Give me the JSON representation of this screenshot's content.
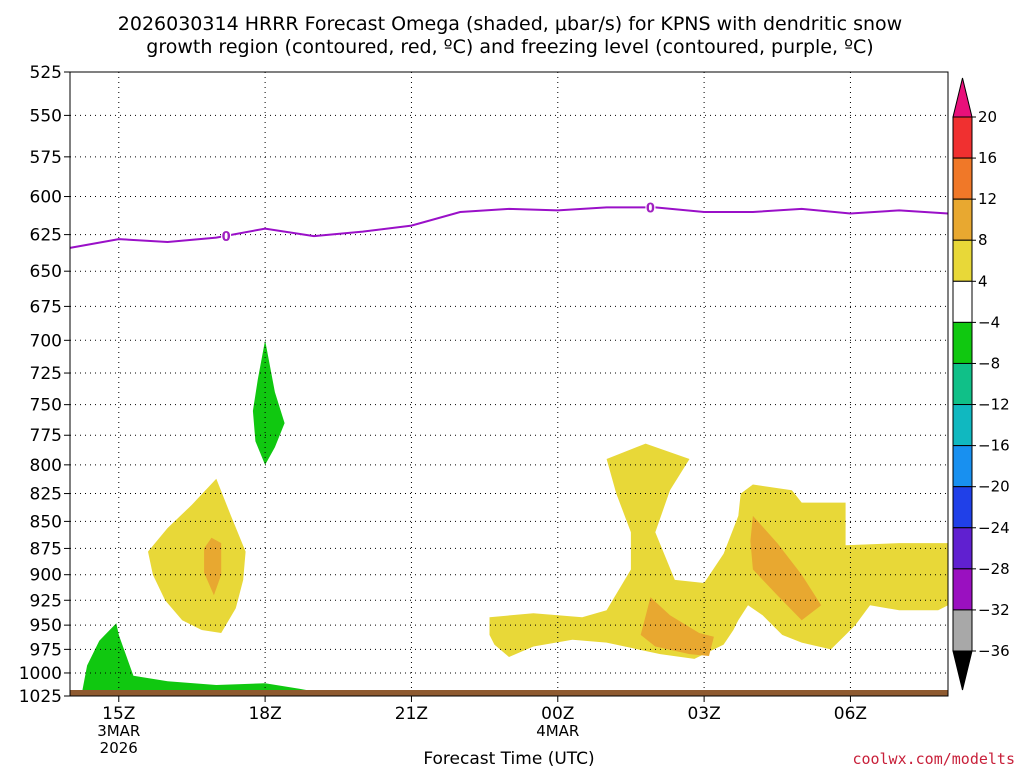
{
  "title_line1": "2026030314 HRRR Forecast Omega (shaded, μbar/s) for KPNS with dendritic snow",
  "title_line2": "growth region (contoured, red, ºC) and freezing level (contoured, purple, ºC)",
  "credit": "coolwx.com/modelts",
  "chart_data": {
    "type": "contour",
    "title": "2026030314 HRRR Forecast Omega (shaded, μbar/s) for KPNS with dendritic snow growth region (contoured, red, ºC) and freezing level (contoured, purple, ºC)",
    "xlabel": "Forecast Time (UTC)",
    "ylabel": "",
    "x_unit": "hours since 2026-03-03 14Z",
    "xlim": [
      0,
      18
    ],
    "ylim": [
      1025,
      525
    ],
    "y_scale": "log-pressure",
    "grid": true,
    "x_ticks": [
      {
        "x": 1,
        "label": "15Z",
        "sub1": "3MAR",
        "sub2": "2026"
      },
      {
        "x": 4,
        "label": "18Z",
        "sub1": "",
        "sub2": ""
      },
      {
        "x": 7,
        "label": "21Z",
        "sub1": "",
        "sub2": ""
      },
      {
        "x": 10,
        "label": "00Z",
        "sub1": "4MAR",
        "sub2": ""
      },
      {
        "x": 13,
        "label": "03Z",
        "sub1": "",
        "sub2": ""
      },
      {
        "x": 16,
        "label": "06Z",
        "sub1": "",
        "sub2": ""
      }
    ],
    "y_ticks": [
      525,
      550,
      575,
      600,
      625,
      650,
      675,
      700,
      725,
      750,
      775,
      800,
      825,
      850,
      875,
      900,
      925,
      950,
      975,
      1000,
      1025
    ],
    "colorbar": {
      "unit": "μbar/s",
      "bins": [
        {
          "lo": 16,
          "hi": 20,
          "color": "#f03030"
        },
        {
          "lo": 12,
          "hi": 16,
          "color": "#f07828"
        },
        {
          "lo": 8,
          "hi": 12,
          "color": "#e8a830"
        },
        {
          "lo": 4,
          "hi": 8,
          "color": "#e8d838"
        },
        {
          "lo": -4,
          "hi": 4,
          "color": "#ffffff"
        },
        {
          "lo": -8,
          "hi": -4,
          "color": "#10c810"
        },
        {
          "lo": -12,
          "hi": -8,
          "color": "#10c088"
        },
        {
          "lo": -16,
          "hi": -12,
          "color": "#10b8c0"
        },
        {
          "lo": -20,
          "hi": -16,
          "color": "#1890f0"
        },
        {
          "lo": -24,
          "hi": -20,
          "color": "#2040e8"
        },
        {
          "lo": -28,
          "hi": -24,
          "color": "#6020d0"
        },
        {
          "lo": -32,
          "hi": -28,
          "color": "#9a10c0"
        },
        {
          "lo": -36,
          "hi": -32,
          "color": "#a8a8a8"
        }
      ],
      "top_arrow_color": "#e8107a",
      "bottom_arrow_color": "#000000",
      "labels": [
        "20",
        "16",
        "12",
        "8",
        "4",
        "−4",
        "−8",
        "−12",
        "−16",
        "−20",
        "−24",
        "−28",
        "−32",
        "−36"
      ]
    },
    "freezing_level": {
      "name": "freezing level (0 ºC)",
      "color": "#9a10c8",
      "label": "0",
      "label_x": [
        3.2,
        11.9
      ],
      "x": [
        0,
        1,
        2,
        3,
        4,
        5,
        6,
        7,
        8,
        9,
        10,
        11,
        12,
        13,
        14,
        15,
        16,
        17,
        18
      ],
      "p": [
        634,
        628,
        630,
        627,
        621,
        626,
        623,
        619,
        610,
        608,
        609,
        607,
        607,
        610,
        610,
        608,
        611,
        609,
        611
      ]
    },
    "omega_regions": [
      {
        "color": "#10c810",
        "value_range": [
          -8,
          -4
        ],
        "points": [
          [
            4.0,
            700
          ],
          [
            4.2,
            740
          ],
          [
            4.4,
            765
          ],
          [
            4.2,
            785
          ],
          [
            4.0,
            800
          ],
          [
            3.8,
            780
          ],
          [
            3.75,
            755
          ],
          [
            3.85,
            730
          ]
        ]
      },
      {
        "color": "#10c810",
        "value_range": [
          -8,
          -4
        ],
        "points": [
          [
            0.25,
            1020
          ],
          [
            0.35,
            992
          ],
          [
            0.6,
            966
          ],
          [
            0.95,
            948
          ],
          [
            1.0,
            960
          ],
          [
            1.3,
            1003
          ],
          [
            2.0,
            1009
          ],
          [
            3.0,
            1013
          ],
          [
            4.0,
            1011
          ],
          [
            4.7,
            1017
          ],
          [
            5.0,
            1020
          ]
        ]
      },
      {
        "color": "#e8d838",
        "value_range": [
          4,
          8
        ],
        "points": [
          [
            1.6,
            878
          ],
          [
            2.0,
            856
          ],
          [
            2.5,
            835
          ],
          [
            3.0,
            812
          ],
          [
            3.3,
            845
          ],
          [
            3.6,
            878
          ],
          [
            3.55,
            905
          ],
          [
            3.4,
            933
          ],
          [
            3.1,
            958
          ],
          [
            2.7,
            955
          ],
          [
            2.3,
            945
          ],
          [
            1.95,
            925
          ],
          [
            1.7,
            900
          ]
        ]
      },
      {
        "color": "#e8a830",
        "value_range": [
          8,
          12
        ],
        "points": [
          [
            2.9,
            865
          ],
          [
            3.1,
            870
          ],
          [
            3.1,
            900
          ],
          [
            2.95,
            920
          ],
          [
            2.75,
            898
          ],
          [
            2.75,
            875
          ]
        ]
      },
      {
        "color": "#e8d838",
        "value_range": [
          4,
          8
        ],
        "points": [
          [
            8.6,
            942
          ],
          [
            9.5,
            938
          ],
          [
            10.5,
            942
          ],
          [
            11.0,
            935
          ],
          [
            11.5,
            895
          ],
          [
            11.5,
            860
          ],
          [
            11.2,
            825
          ],
          [
            11.0,
            795
          ],
          [
            11.8,
            782
          ],
          [
            12.7,
            795
          ],
          [
            12.3,
            822
          ],
          [
            12.0,
            860
          ],
          [
            12.4,
            905
          ],
          [
            13.0,
            908
          ],
          [
            13.4,
            880
          ],
          [
            13.7,
            845
          ],
          [
            13.75,
            825
          ],
          [
            14.0,
            817
          ],
          [
            14.8,
            822
          ],
          [
            15.0,
            833
          ],
          [
            15.9,
            833
          ],
          [
            15.9,
            872
          ],
          [
            17.0,
            870
          ],
          [
            18.0,
            870
          ],
          [
            18.0,
            930
          ],
          [
            17.8,
            935
          ],
          [
            17.0,
            935
          ],
          [
            16.4,
            930
          ],
          [
            16.1,
            950
          ],
          [
            15.9,
            960
          ],
          [
            15.6,
            975
          ],
          [
            15.0,
            968
          ],
          [
            14.6,
            960
          ],
          [
            14.2,
            940
          ],
          [
            13.9,
            930
          ],
          [
            13.7,
            945
          ],
          [
            13.6,
            955
          ],
          [
            13.4,
            970
          ],
          [
            12.8,
            985
          ],
          [
            12.1,
            980
          ],
          [
            11.0,
            968
          ],
          [
            10.3,
            965
          ],
          [
            9.5,
            972
          ],
          [
            9.0,
            983
          ],
          [
            8.7,
            970
          ],
          [
            8.6,
            960
          ]
        ]
      },
      {
        "color": "#e8a830",
        "value_range": [
          8,
          12
        ],
        "points": [
          [
            11.9,
            922
          ],
          [
            12.3,
            940
          ],
          [
            12.9,
            958
          ],
          [
            13.2,
            962
          ],
          [
            13.1,
            982
          ],
          [
            12.7,
            980
          ],
          [
            12.0,
            972
          ],
          [
            11.7,
            960
          ],
          [
            11.9,
            922
          ]
        ]
      },
      {
        "color": "#e8a830",
        "value_range": [
          8,
          12
        ],
        "points": [
          [
            14.0,
            845
          ],
          [
            14.5,
            870
          ],
          [
            15.0,
            900
          ],
          [
            15.4,
            930
          ],
          [
            15.0,
            945
          ],
          [
            14.5,
            920
          ],
          [
            14.0,
            895
          ],
          [
            13.95,
            868
          ]
        ]
      }
    ],
    "ground_level": {
      "color": "#8e5a30",
      "p": 1025
    }
  }
}
